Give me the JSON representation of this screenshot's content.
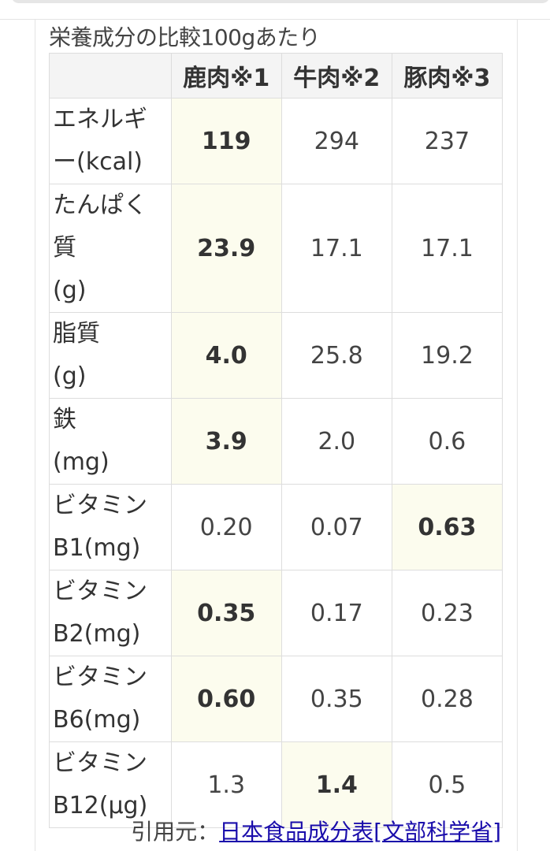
{
  "caption": "栄養成分の比較100gあたり",
  "headers": [
    "",
    "鹿肉※1",
    "牛肉※2",
    "豚肉※3"
  ],
  "rows": [
    {
      "label": [
        "エネルギ",
        "ー(kcal)"
      ],
      "values": [
        "119",
        "294",
        "237"
      ],
      "highlight": 0
    },
    {
      "label": [
        "たんぱく",
        "質",
        "(g)"
      ],
      "values": [
        "23.9",
        "17.1",
        "17.1"
      ],
      "highlight": 0
    },
    {
      "label": [
        "脂質",
        "(g)"
      ],
      "values": [
        "4.0",
        "25.8",
        "19.2"
      ],
      "highlight": 0
    },
    {
      "label": [
        "鉄",
        "(mg)"
      ],
      "values": [
        "3.9",
        "2.0",
        "0.6"
      ],
      "highlight": 0
    },
    {
      "label": [
        "ビタミン",
        "B1(mg)"
      ],
      "values": [
        "0.20",
        "0.07",
        "0.63"
      ],
      "highlight": 2
    },
    {
      "label": [
        "ビタミン",
        "B2(mg)"
      ],
      "values": [
        "0.35",
        "0.17",
        "0.23"
      ],
      "highlight": 0
    },
    {
      "label": [
        "ビタミン",
        "B6(mg)"
      ],
      "values": [
        "0.60",
        "0.35",
        "0.28"
      ],
      "highlight": 0
    },
    {
      "label": [
        "ビタミン",
        "B12(μg)"
      ],
      "values": [
        "1.3",
        "1.4",
        "0.5"
      ],
      "highlight": 1
    }
  ],
  "footer": {
    "prefix": "引用元：",
    "link_text": "日本食品成分表[文部科学省]"
  },
  "colors": {
    "highlight": "#fcfcee",
    "link": "#1a0dab",
    "header_bg": "#f4f4f4"
  }
}
